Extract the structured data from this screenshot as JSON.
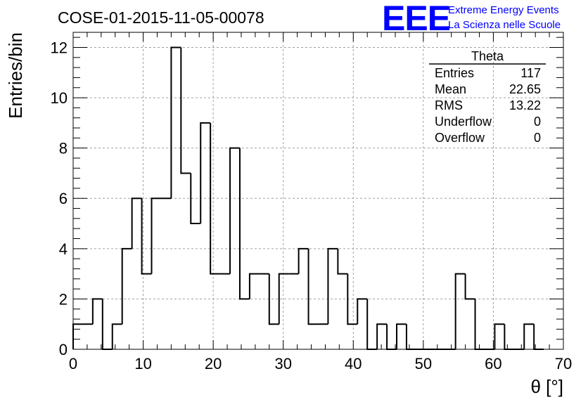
{
  "chart_data": {
    "type": "bar",
    "title": "COSE-01-2015-11-05-00078",
    "xlabel": "θ [°]",
    "ylabel": "Entries/bin",
    "xlim": [
      0,
      70
    ],
    "ylim": [
      0,
      12.6
    ],
    "grid": true,
    "bin_width": 1.4,
    "bins": [
      [
        0.0,
        1
      ],
      [
        1.4,
        1
      ],
      [
        2.8,
        2
      ],
      [
        4.2,
        0
      ],
      [
        5.6,
        1
      ],
      [
        7.0,
        4
      ],
      [
        8.4,
        6
      ],
      [
        9.8,
        3
      ],
      [
        11.2,
        6
      ],
      [
        12.6,
        6
      ],
      [
        14.0,
        12
      ],
      [
        15.4,
        7
      ],
      [
        16.8,
        5
      ],
      [
        18.2,
        9
      ],
      [
        19.6,
        3
      ],
      [
        21.0,
        3
      ],
      [
        22.4,
        8
      ],
      [
        23.8,
        2
      ],
      [
        25.2,
        3
      ],
      [
        26.6,
        3
      ],
      [
        28.0,
        1
      ],
      [
        29.4,
        3
      ],
      [
        30.8,
        3
      ],
      [
        32.2,
        4
      ],
      [
        33.6,
        1
      ],
      [
        35.0,
        1
      ],
      [
        36.4,
        4
      ],
      [
        37.8,
        3
      ],
      [
        39.2,
        1
      ],
      [
        40.6,
        2
      ],
      [
        42.0,
        0
      ],
      [
        43.4,
        1
      ],
      [
        44.8,
        0
      ],
      [
        46.2,
        1
      ],
      [
        47.6,
        0
      ],
      [
        49.0,
        0
      ],
      [
        50.4,
        0
      ],
      [
        51.8,
        0
      ],
      [
        53.2,
        0
      ],
      [
        54.6,
        3
      ],
      [
        56.0,
        2
      ],
      [
        57.4,
        0
      ],
      [
        58.8,
        0
      ],
      [
        60.2,
        1
      ],
      [
        61.6,
        0
      ],
      [
        63.0,
        0
      ],
      [
        64.4,
        1
      ],
      [
        65.8,
        0
      ]
    ],
    "x_ticks": [
      "0",
      "10",
      "20",
      "30",
      "40",
      "50",
      "60",
      "70"
    ],
    "y_ticks": [
      "0",
      "2",
      "4",
      "6",
      "8",
      "10",
      "12"
    ],
    "stats": {
      "name": "Theta",
      "rows": [
        {
          "label": "Entries",
          "value": "117"
        },
        {
          "label": "Mean",
          "value": "22.65"
        },
        {
          "label": "RMS",
          "value": "13.22"
        },
        {
          "label": "Underflow",
          "value": "0"
        },
        {
          "label": "Overflow",
          "value": "0"
        }
      ]
    }
  },
  "logo": {
    "mark": "EEE",
    "line1": "Extreme Energy Events",
    "line2": "La Scienza nelle Scuole",
    "color": "#0000ff"
  },
  "colors": {
    "histogram": "#000000",
    "grid": "#a0a0a0"
  }
}
